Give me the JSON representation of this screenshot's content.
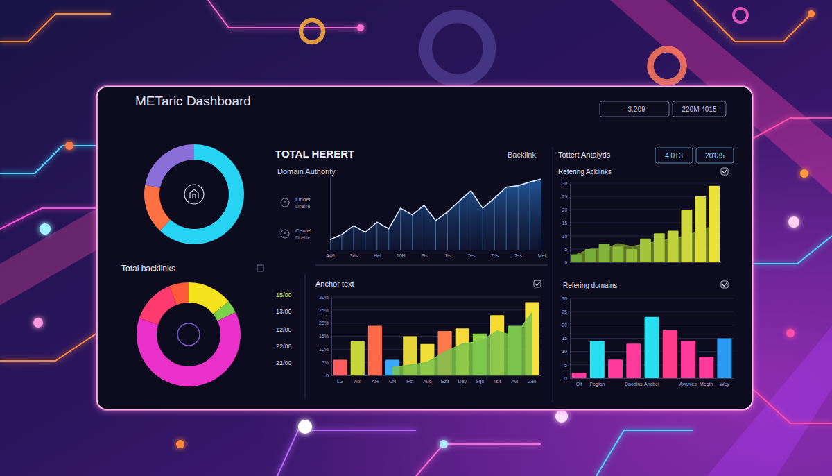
{
  "dashboard": {
    "title": "METaric Dashboard",
    "header_stats": [
      "- 3,209",
      "220M 4015"
    ],
    "side_items": [
      {
        "label": "Lindet",
        "sublabel": "Dheilie"
      },
      {
        "label": "Centel",
        "sublabel": "Dheilie"
      }
    ],
    "badges": [
      "4 0T3",
      "20135"
    ],
    "side_labels": [
      "15/00",
      "13/00",
      "12/00",
      "22/00",
      "22/00"
    ]
  },
  "chart_data": [
    {
      "type": "pie",
      "values": [
        62,
        16,
        22
      ],
      "colors": [
        "#27d3f2",
        "#ff7043",
        "#8b6fd8"
      ]
    },
    {
      "type": "line",
      "title": "TOTAL HERERT",
      "subtitle": "Domain Authority",
      "annotations": [
        "Backlink"
      ],
      "categories": [
        "A40",
        null,
        "3ds",
        null,
        "Hei",
        null,
        "10H",
        null,
        "Fis",
        null,
        "1ts",
        null,
        "7es",
        null,
        "7ds",
        null,
        "2ss",
        null,
        "Mei"
      ],
      "values": [
        14,
        21,
        33,
        24,
        38,
        29,
        57,
        48,
        61,
        40,
        52,
        67,
        81,
        57,
        71,
        86,
        88,
        93,
        97
      ],
      "color": "#d6e6ff",
      "ylim": [
        0,
        100
      ],
      "grid": false,
      "tick_labels": "x"
    },
    {
      "type": "bar",
      "title": "Tottert Antalyds",
      "subtitle": "Refering Acklinks",
      "categories": [
        null,
        null,
        null,
        null,
        null,
        null,
        null,
        null,
        null,
        null,
        null
      ],
      "series": [
        {
          "type": "area",
          "color": "#6f8a2c",
          "values": [
            3,
            5,
            5,
            7,
            6,
            7,
            8,
            9,
            10,
            12,
            14
          ]
        },
        {
          "type": "bar",
          "colors": [
            "#6fa63c",
            "#78ad3a",
            "#82b33a",
            "#8bb83a",
            "#95bd3a",
            "#a2c33a",
            "#b0c93a",
            "#bfd03a",
            "#cdd63a",
            "#dbdc3a",
            "#e9e23a"
          ],
          "values": [
            3,
            5,
            7,
            6,
            5,
            9,
            11,
            12,
            20,
            25,
            29
          ]
        }
      ],
      "ylim": [
        0,
        30
      ],
      "yticks": [
        0,
        5,
        10,
        15,
        20,
        25,
        30
      ],
      "grid": true,
      "tick_labels": "y"
    },
    {
      "type": "bar",
      "title": "Anchor text",
      "categories": [
        "LG",
        "Aul",
        "AH",
        "CN",
        "Pst",
        "Aug",
        "Ezit",
        "Day",
        "Sgit",
        "Tsit",
        "Avi",
        "Zeli"
      ],
      "series": [
        {
          "type": "bar",
          "colors": [
            "#ff5d5d",
            "#c6d63a",
            "#ff6a4a",
            "#3aa8ff",
            "#e6d53a",
            "#f2df3a",
            "#ff7a4a",
            "#f5d83a",
            "#8ecf4a",
            "#f7dc30",
            "#78c850",
            "#f5e040"
          ],
          "values": [
            6,
            13,
            19,
            6,
            15,
            12,
            17,
            18,
            16,
            23,
            19,
            28
          ]
        },
        {
          "type": "area",
          "color": "#7cc44c",
          "values": [
            null,
            null,
            null,
            3,
            4,
            5,
            9,
            12,
            13,
            17,
            15,
            24
          ]
        }
      ],
      "ylim": [
        0,
        30
      ],
      "yticks": [
        0,
        {
          "value": 5,
          "label": "5%"
        },
        {
          "value": 10,
          "label": "10%"
        },
        {
          "value": 15,
          "label": "15%"
        },
        {
          "value": 20,
          "label": "20%"
        },
        {
          "value": 25,
          "label": "25%"
        },
        {
          "value": 30,
          "label": "30%"
        }
      ],
      "grid": true
    },
    {
      "type": "pie",
      "title": "Total backlinks",
      "values": [
        14,
        4,
        62,
        14,
        6
      ],
      "colors": [
        "#f4e21c",
        "#7bd14a",
        "#e930c8",
        "#ff3a6e",
        "#ff5a3c"
      ]
    },
    {
      "type": "bar",
      "title": "Refering domains",
      "categories": [
        "Olt",
        "Pogian",
        null,
        "Daobins",
        "Ancbet",
        null,
        "Avanjes",
        "Meqth",
        "Wey"
      ],
      "values": [
        2,
        14,
        7,
        13,
        23,
        18,
        14,
        8,
        15
      ],
      "colors": [
        "#ff3a9a",
        "#28e0f0",
        "#ff3a9a",
        "#ff3a9a",
        "#28e0f0",
        "#ff3a8a",
        "#ff3a9a",
        "#ff3a9a",
        "#2a9bf0"
      ],
      "ylim": [
        0,
        30
      ],
      "yticks": [
        0,
        5,
        10,
        15,
        20,
        25,
        30
      ],
      "grid": true
    }
  ]
}
